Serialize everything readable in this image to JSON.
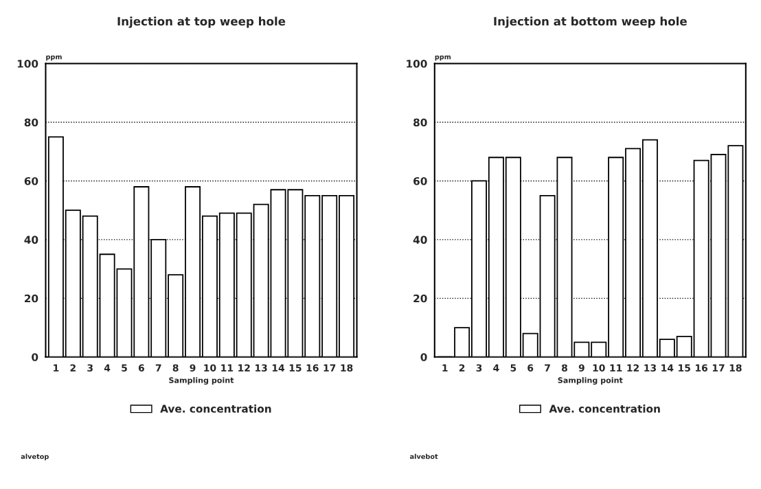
{
  "chart_data": [
    {
      "type": "bar",
      "title": "Injection at top weep hole",
      "xlabel": "Sampling point",
      "ylabel": "ppm",
      "categories": [
        "1",
        "2",
        "3",
        "4",
        "5",
        "6",
        "7",
        "8",
        "9",
        "10",
        "11",
        "12",
        "13",
        "14",
        "15",
        "16",
        "17",
        "18"
      ],
      "series": [
        {
          "name": "Ave. concentration",
          "color": "#ffffff",
          "values": [
            75,
            50,
            48,
            35,
            30,
            58,
            40,
            28,
            58,
            48,
            49,
            49,
            52,
            57,
            57,
            55,
            55,
            55
          ]
        }
      ],
      "ylim": [
        0,
        100
      ],
      "yticks": [
        0,
        20,
        40,
        60,
        80,
        100
      ],
      "grid": "y",
      "legend": "bottom",
      "annotations": [
        "alvetop"
      ]
    },
    {
      "type": "bar",
      "title": "Injection at bottom weep hole",
      "xlabel": "Sampling point",
      "ylabel": "ppm",
      "categories": [
        "1",
        "2",
        "3",
        "4",
        "5",
        "6",
        "7",
        "8",
        "9",
        "10",
        "11",
        "12",
        "13",
        "14",
        "15",
        "16",
        "17",
        "18"
      ],
      "series": [
        {
          "name": "Ave. concentration",
          "color": "#ffffff",
          "values": [
            0,
            10,
            60,
            68,
            68,
            8,
            55,
            68,
            5,
            5,
            68,
            71,
            74,
            6,
            7,
            67,
            69,
            72
          ]
        }
      ],
      "ylim": [
        0,
        100
      ],
      "yticks": [
        0,
        20,
        40,
        60,
        80,
        100
      ],
      "grid": "y",
      "legend": "bottom",
      "annotations": [
        "alvebot"
      ]
    }
  ]
}
